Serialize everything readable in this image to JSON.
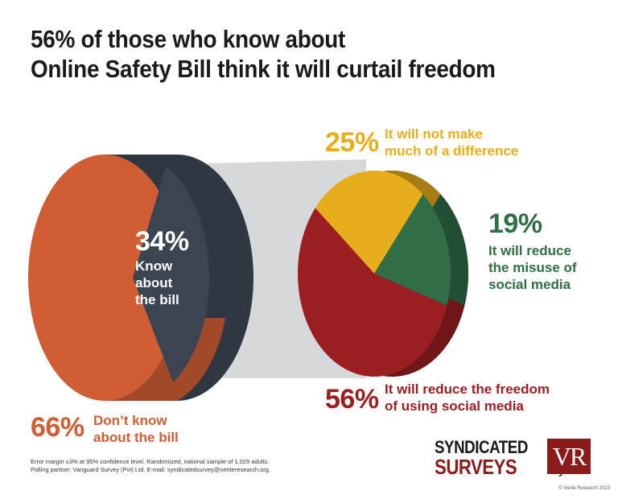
{
  "title": {
    "line1": "56% of those who know about",
    "line2": "Online Safety Bill think it will curtail freedom"
  },
  "chart_data": [
    {
      "type": "pie",
      "slices": [
        {
          "label": "Know about the bill",
          "value": 34,
          "color": "#3b4552"
        },
        {
          "label": "Don’t know about the bill",
          "value": 66,
          "color": "#cf5e34"
        }
      ]
    },
    {
      "type": "pie",
      "slices": [
        {
          "label": "It will not make much of a difference",
          "value": 25,
          "color": "#e8ad1b"
        },
        {
          "label": "It will reduce the misuse of social media",
          "value": 19,
          "color": "#2f6e47"
        },
        {
          "label": "It will reduce the freedom of using social media",
          "value": 56,
          "color": "#9b1f22"
        }
      ]
    }
  ],
  "labels": {
    "know": {
      "pct": "34%",
      "line1": "Know",
      "line2": "about",
      "line3": "the bill"
    },
    "dont_know": {
      "pct": "66%",
      "line1": "Don’t know",
      "line2": "about the bill"
    },
    "no_difference": {
      "pct": "25%",
      "line1": "It will not make",
      "line2": "much of a difference"
    },
    "reduce_misuse": {
      "pct": "19%",
      "line1": "It will reduce",
      "line2": "the misuse of",
      "line3": "social media"
    },
    "reduce_freedom": {
      "pct": "56%",
      "line1": "It will reduce the freedom",
      "line2": "of using social media"
    }
  },
  "footnote": {
    "line1": "Error margin ±3% at 95% confidence level. Randomized, national sample of 1,029 adults.",
    "line2": "Polling partner: Vanguard Survey (Pvt) Ltd. E-mail: syndicatedsurvey@veriteresearch.org."
  },
  "brand": {
    "line1": "SYNDICATED",
    "line2": "SURVEYS",
    "by": "by",
    "logo": "VR"
  },
  "copyright": "© Verité Research 2023"
}
